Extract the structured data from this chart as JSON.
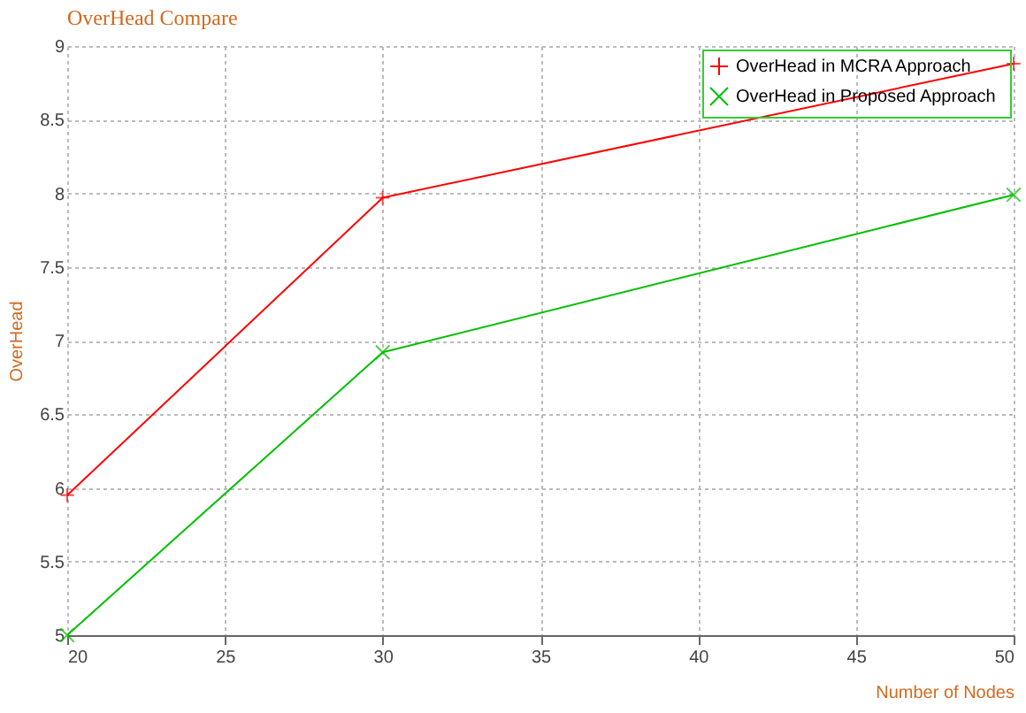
{
  "chart_data": {
    "type": "line",
    "title": "OverHead Compare",
    "xlabel": "Number of Nodes",
    "ylabel": "OverHead",
    "x": [
      20,
      30,
      50
    ],
    "series": [
      {
        "name": "OverHead in  MCRA Approach",
        "color": "#ff0000",
        "values": [
          5.95,
          7.97,
          8.88
        ]
      },
      {
        "name": "OverHead in  Proposed Approach",
        "color": "#00c000",
        "values": [
          5,
          6.92,
          7.99
        ]
      }
    ],
    "xlim": [
      20,
      50
    ],
    "xticks": [
      20,
      25,
      30,
      35,
      40,
      45,
      50
    ],
    "ylim": [
      5,
      9
    ],
    "yticks": [
      5,
      5.5,
      6,
      6.5,
      7,
      7.5,
      8,
      8.5,
      9
    ],
    "grid": true,
    "legend": "top right",
    "marker": "cross",
    "line_style": "solid"
  }
}
